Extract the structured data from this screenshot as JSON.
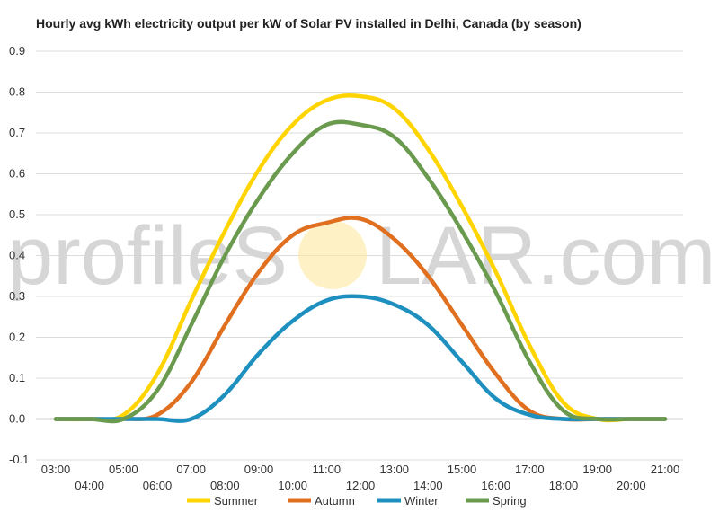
{
  "chart_data": {
    "type": "line",
    "title": "Hourly avg kWh electricity output per kW of Solar PV installed in Delhi, Canada (by season)",
    "xlabel": "",
    "ylabel": "",
    "ylim": [
      -0.1,
      0.9
    ],
    "yticks": [
      "0.9",
      "0.8",
      "0.7",
      "0.6",
      "0.5",
      "0.4",
      "0.3",
      "0.2",
      "0.1",
      "0.0",
      "-0.1"
    ],
    "categories": [
      "03:00",
      "04:00",
      "05:00",
      "06:00",
      "07:00",
      "08:00",
      "09:00",
      "10:00",
      "11:00",
      "12:00",
      "13:00",
      "14:00",
      "15:00",
      "16:00",
      "17:00",
      "18:00",
      "19:00",
      "20:00",
      "21:00"
    ],
    "grid": true,
    "legend_position": "bottom",
    "watermark": {
      "left": "profileS",
      "right": "LAR.com"
    },
    "series": [
      {
        "name": "Summer",
        "color": "#FFD400",
        "values": [
          0,
          0,
          0.01,
          0.11,
          0.29,
          0.46,
          0.61,
          0.72,
          0.78,
          0.79,
          0.76,
          0.66,
          0.52,
          0.36,
          0.18,
          0.04,
          0.0,
          0,
          0
        ]
      },
      {
        "name": "Autumn",
        "color": "#E07020",
        "values": [
          0,
          0,
          0,
          0.01,
          0.09,
          0.23,
          0.36,
          0.45,
          0.48,
          0.49,
          0.44,
          0.35,
          0.23,
          0.11,
          0.02,
          0,
          0,
          0,
          0
        ]
      },
      {
        "name": "Winter",
        "color": "#1E90C0",
        "values": [
          0,
          0,
          0,
          0,
          0.0,
          0.06,
          0.16,
          0.24,
          0.29,
          0.3,
          0.28,
          0.23,
          0.14,
          0.05,
          0.01,
          0,
          0,
          0,
          0
        ]
      },
      {
        "name": "Spring",
        "color": "#6A9A4E",
        "values": [
          0,
          0,
          0.0,
          0.07,
          0.23,
          0.4,
          0.54,
          0.65,
          0.72,
          0.72,
          0.69,
          0.59,
          0.46,
          0.31,
          0.14,
          0.02,
          0,
          0,
          0
        ]
      }
    ]
  }
}
